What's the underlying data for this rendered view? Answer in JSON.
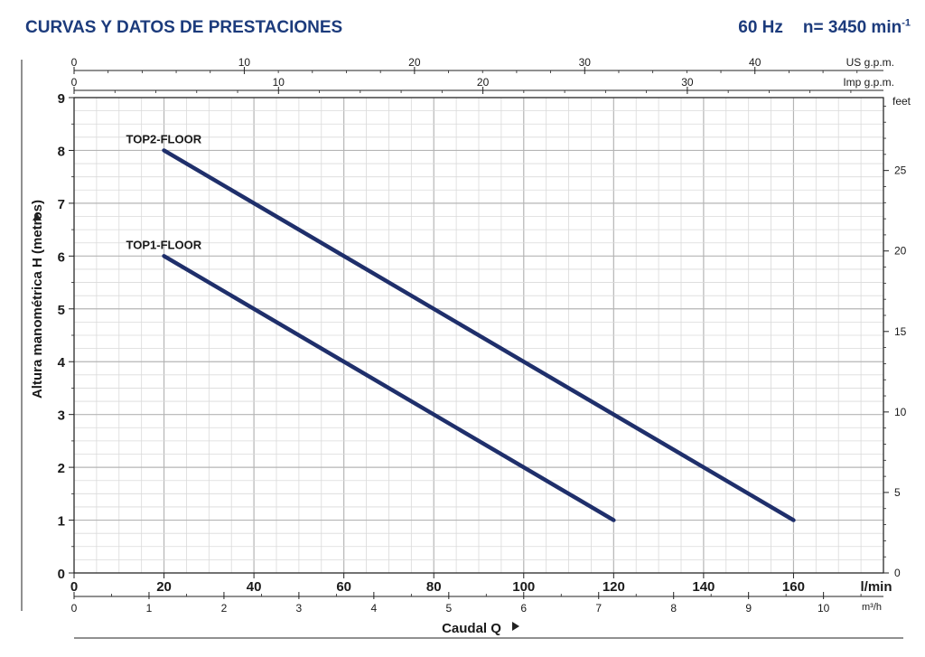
{
  "header": {
    "title": "CURVAS Y DATOS DE PRESTACIONES",
    "frequency": "60 Hz",
    "speed_prefix": "n= 3450 min",
    "speed_exponent": "-1"
  },
  "colors": {
    "title": "#1c3b7c",
    "curve": "#1f2f6b",
    "grid_major": "#b5b5b5",
    "grid_minor": "#dadada",
    "axis": "#222222"
  },
  "chart_data": {
    "type": "line",
    "x": {
      "label": "Caudal Q",
      "unit": "l/min",
      "range": [
        0,
        180
      ],
      "ticks": [
        0,
        20,
        40,
        60,
        80,
        100,
        120,
        140,
        160
      ]
    },
    "y": {
      "label": "Altura manométrica H (metros)",
      "range": [
        0,
        9
      ],
      "ticks": [
        0,
        1,
        2,
        3,
        4,
        5,
        6,
        7,
        8,
        9
      ]
    },
    "x_secondary_bottom": {
      "unit": "m³/h",
      "ticks": [
        0,
        1,
        2,
        3,
        4,
        5,
        6,
        7,
        8,
        9,
        10
      ]
    },
    "x_top_us": {
      "unit": "US g.p.m.",
      "ticks": [
        0,
        10,
        20,
        30,
        40
      ]
    },
    "x_top_imp": {
      "unit": "Imp g.p.m.",
      "ticks": [
        0,
        10,
        20,
        30
      ]
    },
    "y_secondary_right": {
      "unit": "feet",
      "ticks": [
        0,
        5,
        10,
        15,
        20,
        25
      ]
    },
    "grid": true,
    "series": [
      {
        "name": "TOP2-FLOOR",
        "x": [
          20,
          160
        ],
        "y": [
          8,
          1
        ]
      },
      {
        "name": "TOP1-FLOOR",
        "x": [
          20,
          120
        ],
        "y": [
          6,
          1
        ]
      }
    ]
  }
}
